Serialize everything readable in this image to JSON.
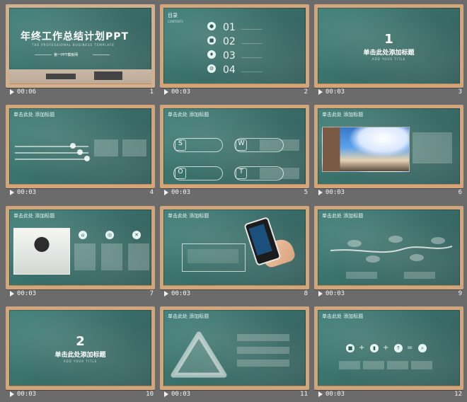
{
  "slides": [
    {
      "number": "1",
      "time": "00:06",
      "content": {
        "title": "年终工作总结计划PPT",
        "subtitle": "THE PROFESSIONAL BUSINESS TEMPLATE",
        "tag": "第一PPT模板网"
      }
    },
    {
      "number": "2",
      "time": "00:03",
      "content": {
        "title": "目录",
        "subtitle": "CONTENTS",
        "items": [
          "01",
          "02",
          "03",
          "04"
        ]
      }
    },
    {
      "number": "3",
      "time": "00:03",
      "content": {
        "section_number": "1",
        "title": "单击此处添加标题",
        "subtitle": "ADD YOUR TITLE"
      }
    },
    {
      "number": "4",
      "time": "00:03",
      "content": {
        "title": "单击此处 添加标题"
      }
    },
    {
      "number": "5",
      "time": "00:03",
      "content": {
        "title": "单击此处 添加标题",
        "swot": [
          "S",
          "W",
          "O",
          "T"
        ]
      }
    },
    {
      "number": "6",
      "time": "00:03",
      "content": {
        "title": "单击此处 添加标题"
      }
    },
    {
      "number": "7",
      "time": "00:03",
      "content": {
        "title": "单击此处 添加标题"
      }
    },
    {
      "number": "8",
      "time": "00:03",
      "content": {
        "title": "单击此处 添加标题"
      }
    },
    {
      "number": "9",
      "time": "00:03",
      "content": {
        "title": "单击此处 添加标题"
      }
    },
    {
      "number": "10",
      "time": "00:03",
      "content": {
        "section_number": "2",
        "title": "单击此处添加标题",
        "subtitle": "ADD YOUR TITLE"
      }
    },
    {
      "number": "11",
      "time": "00:03",
      "content": {
        "title": "单击此处 添加标题"
      }
    },
    {
      "number": "12",
      "time": "00:03",
      "content": {
        "title": "单击此处 添加标题"
      }
    }
  ]
}
